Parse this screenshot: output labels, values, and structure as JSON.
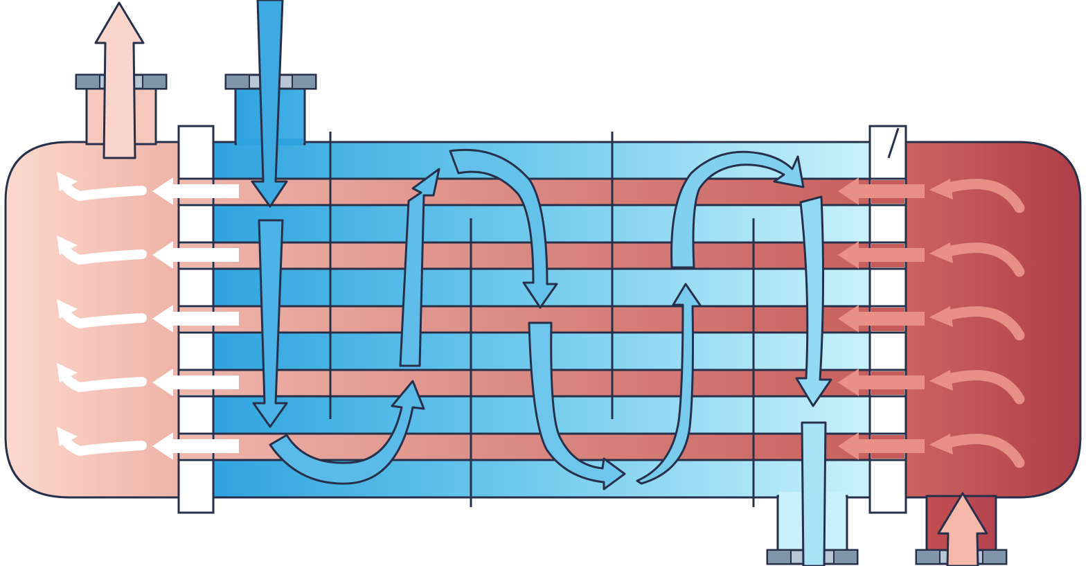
{
  "diagram": {
    "subject": "shell-and-tube-heat-exchanger",
    "colors": {
      "outline": "#27304a",
      "cold_dark": "#2fa3df",
      "cold_mid": "#6cc8ec",
      "cold_light": "#c9f1fb",
      "hot_dark": "#b2404a",
      "hot_mid": "#d98780",
      "hot_light": "#f7d5cc",
      "hot_arrow_fill": "#fbd5cb",
      "flange_grey": "#8094aa",
      "flange_light": "#b8c6d6",
      "tube_arrow_white": "#ffffff",
      "tube_arrow_salmon": "#e88f86"
    },
    "tube_count": 5,
    "baffle_count": 4,
    "nozzles": [
      "hot-outlet-nozzle",
      "cold-inlet-nozzle",
      "cold-outlet-nozzle",
      "hot-inlet-nozzle"
    ],
    "flow_paths": [
      "hot-fluid-through-tubes-right-to-left",
      "cold-fluid-through-shell-serpentine"
    ]
  }
}
